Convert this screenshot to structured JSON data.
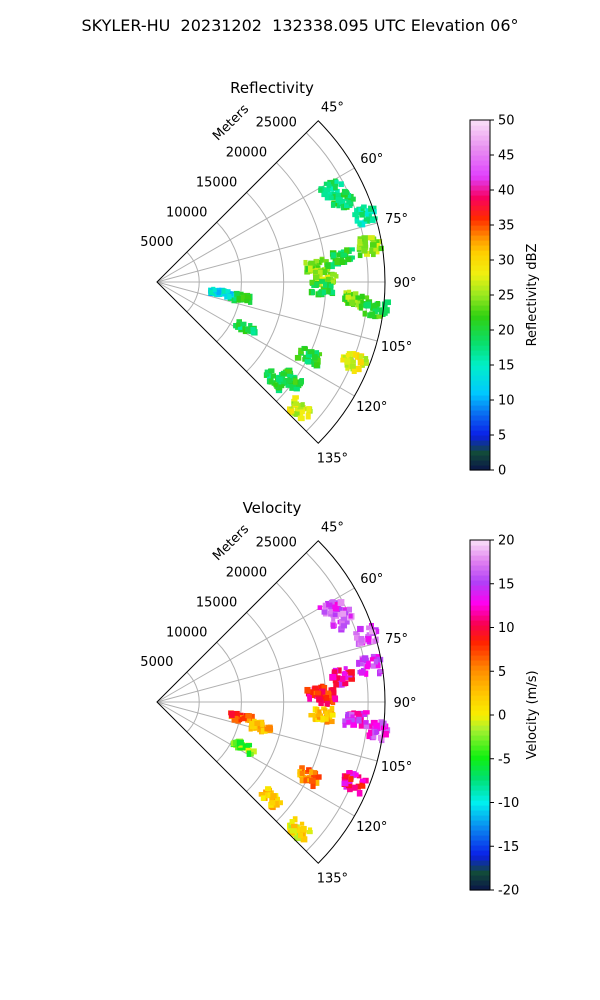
{
  "title": "SKYLER-HU  20231202  132338.095 UTC Elevation 06°",
  "chart_data": [
    {
      "type": "heatmap",
      "subtype": "polar-sector-radar",
      "title": "Reflectivity",
      "range_label": "Meters",
      "range_ticks": [
        5000,
        10000,
        15000,
        20000,
        25000
      ],
      "range_max": 27000,
      "azimuth_range_deg": [
        45,
        135
      ],
      "azimuth_ticks": [
        "45°",
        "60°",
        "75°",
        "90°",
        "105°",
        "120°",
        "135°"
      ],
      "colorbar": {
        "label": "Reflectivity dBZ",
        "min": 0,
        "max": 50,
        "ticks": [
          0,
          5,
          10,
          15,
          20,
          25,
          30,
          35,
          40,
          45,
          50
        ]
      },
      "echoes": [
        {
          "az": 62,
          "r": 23500,
          "v": 18
        },
        {
          "az": 66,
          "r": 24000,
          "v": 19
        },
        {
          "az": 72,
          "r": 26000,
          "v": 17
        },
        {
          "az": 80,
          "r": 25500,
          "v": 25
        },
        {
          "az": 82,
          "r": 22000,
          "v": 20
        },
        {
          "az": 84,
          "r": 19000,
          "v": 24
        },
        {
          "az": 88,
          "r": 20000,
          "v": 26
        },
        {
          "az": 92,
          "r": 19500,
          "v": 20
        },
        {
          "az": 95,
          "r": 23500,
          "v": 24
        },
        {
          "az": 97,
          "r": 26000,
          "v": 21
        },
        {
          "az": 100,
          "r": 10000,
          "v": 20
        },
        {
          "az": 99,
          "r": 7500,
          "v": 13
        },
        {
          "az": 112,
          "r": 25000,
          "v": 28
        },
        {
          "az": 116,
          "r": 20000,
          "v": 20
        },
        {
          "az": 117,
          "r": 11500,
          "v": 19
        },
        {
          "az": 126,
          "r": 19500,
          "v": 20
        },
        {
          "az": 132,
          "r": 22500,
          "v": 27
        },
        {
          "az": 130,
          "r": 18000,
          "v": 19
        }
      ]
    },
    {
      "type": "heatmap",
      "subtype": "polar-sector-radar",
      "title": "Velocity",
      "range_label": "Meters",
      "range_ticks": [
        5000,
        10000,
        15000,
        20000,
        25000
      ],
      "range_max": 27000,
      "azimuth_range_deg": [
        45,
        135
      ],
      "azimuth_ticks": [
        "45°",
        "60°",
        "75°",
        "90°",
        "105°",
        "120°",
        "135°"
      ],
      "colorbar": {
        "label": "Velocity (m/s)",
        "min": -20,
        "max": 20,
        "ticks": [
          -20,
          -15,
          -10,
          -5,
          0,
          5,
          10,
          15,
          20
        ]
      },
      "echoes": [
        {
          "az": 62,
          "r": 23500,
          "v": 15
        },
        {
          "az": 66,
          "r": 24000,
          "v": 16
        },
        {
          "az": 72,
          "r": 26000,
          "v": 16
        },
        {
          "az": 80,
          "r": 25500,
          "v": 15
        },
        {
          "az": 82,
          "r": 22000,
          "v": 12
        },
        {
          "az": 86,
          "r": 19000,
          "v": 10
        },
        {
          "az": 88,
          "r": 20000,
          "v": 9
        },
        {
          "az": 94,
          "r": 19500,
          "v": 3
        },
        {
          "az": 95,
          "r": 23500,
          "v": 14
        },
        {
          "az": 97,
          "r": 26000,
          "v": 15
        },
        {
          "az": 100,
          "r": 10000,
          "v": 7
        },
        {
          "az": 103,
          "r": 12500,
          "v": 3
        },
        {
          "az": 112,
          "r": 25000,
          "v": 11
        },
        {
          "az": 116,
          "r": 20000,
          "v": 5
        },
        {
          "az": 117,
          "r": 11500,
          "v": -3
        },
        {
          "az": 132,
          "r": 22500,
          "v": 1
        },
        {
          "az": 130,
          "r": 17500,
          "v": 2
        }
      ]
    }
  ]
}
